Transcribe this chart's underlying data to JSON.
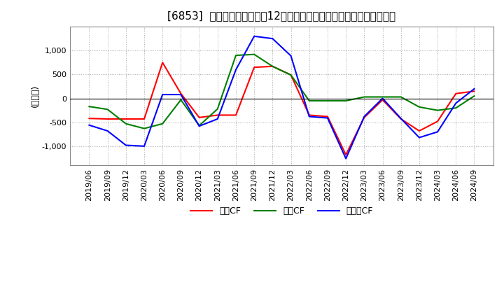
{
  "title": "[6853]  キャッシュフローの12か月移動合計の対前年同期増減額の推移",
  "ylabel": "(百万円)",
  "ylim": [
    -1400,
    1500
  ],
  "yticks": [
    -1000,
    -500,
    0,
    500,
    1000
  ],
  "dates": [
    "2019/06",
    "2019/09",
    "2019/12",
    "2020/03",
    "2020/06",
    "2020/09",
    "2020/12",
    "2021/03",
    "2021/06",
    "2021/09",
    "2021/12",
    "2022/03",
    "2022/06",
    "2022/09",
    "2022/12",
    "2023/03",
    "2023/06",
    "2023/09",
    "2023/12",
    "2024/03",
    "2024/06",
    "2024/09"
  ],
  "operating_cf": [
    -420,
    -430,
    -430,
    -430,
    750,
    100,
    -400,
    -350,
    -350,
    650,
    670,
    490,
    -350,
    -380,
    -1180,
    -400,
    -30,
    -430,
    -680,
    -480,
    100,
    150
  ],
  "investing_cf": [
    -170,
    -230,
    -530,
    -630,
    -530,
    -30,
    -570,
    -220,
    900,
    920,
    670,
    490,
    -50,
    -50,
    -50,
    30,
    30,
    30,
    -180,
    -250,
    -200,
    50
  ],
  "free_cf": [
    -560,
    -680,
    -980,
    -1000,
    80,
    80,
    -580,
    -430,
    600,
    1300,
    1250,
    890,
    -380,
    -410,
    -1260,
    -380,
    0,
    -420,
    -820,
    -700,
    -100,
    200
  ],
  "operating_color": "#ff0000",
  "investing_color": "#008000",
  "free_color": "#0000ff",
  "background_color": "#ffffff",
  "legend_labels": [
    "営業CF",
    "投資CF",
    "フリーCF"
  ]
}
